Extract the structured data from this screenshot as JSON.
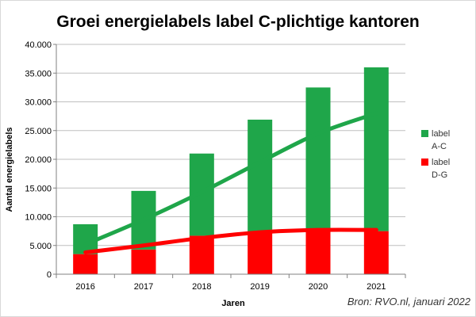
{
  "chart_data": {
    "type": "bar",
    "stacked": true,
    "title": "Groei energielabels label C-plichtige kantoren",
    "xlabel": "Jaren",
    "ylabel": "Aantal energielabels",
    "categories": [
      "2016",
      "2017",
      "2018",
      "2019",
      "2020",
      "2021"
    ],
    "ylim": [
      0,
      40000
    ],
    "yticks": [
      "0",
      "5.000",
      "10.000",
      "15.000",
      "20.000",
      "25.000",
      "30.000",
      "35.000",
      "40.000"
    ],
    "ytick_values": [
      0,
      5000,
      10000,
      15000,
      20000,
      25000,
      30000,
      35000,
      40000
    ],
    "grid": "horizontal",
    "legend_position": "right",
    "series": [
      {
        "name_lines": [
          "label",
          "A-C"
        ],
        "color": "#1fa64a",
        "values": [
          5200,
          10200,
          14300,
          19500,
          24800,
          28500
        ],
        "trend": [
          5200,
          9500,
          14300,
          19500,
          24500,
          28000
        ]
      },
      {
        "name_lines": [
          "label",
          "D-G"
        ],
        "color": "#ff0000",
        "values": [
          3500,
          4300,
          6700,
          7400,
          7700,
          7500
        ],
        "trend": [
          3800,
          5000,
          6300,
          7300,
          7700,
          7700
        ]
      }
    ],
    "source": "Bron: RVO.nl, januari 2022"
  }
}
